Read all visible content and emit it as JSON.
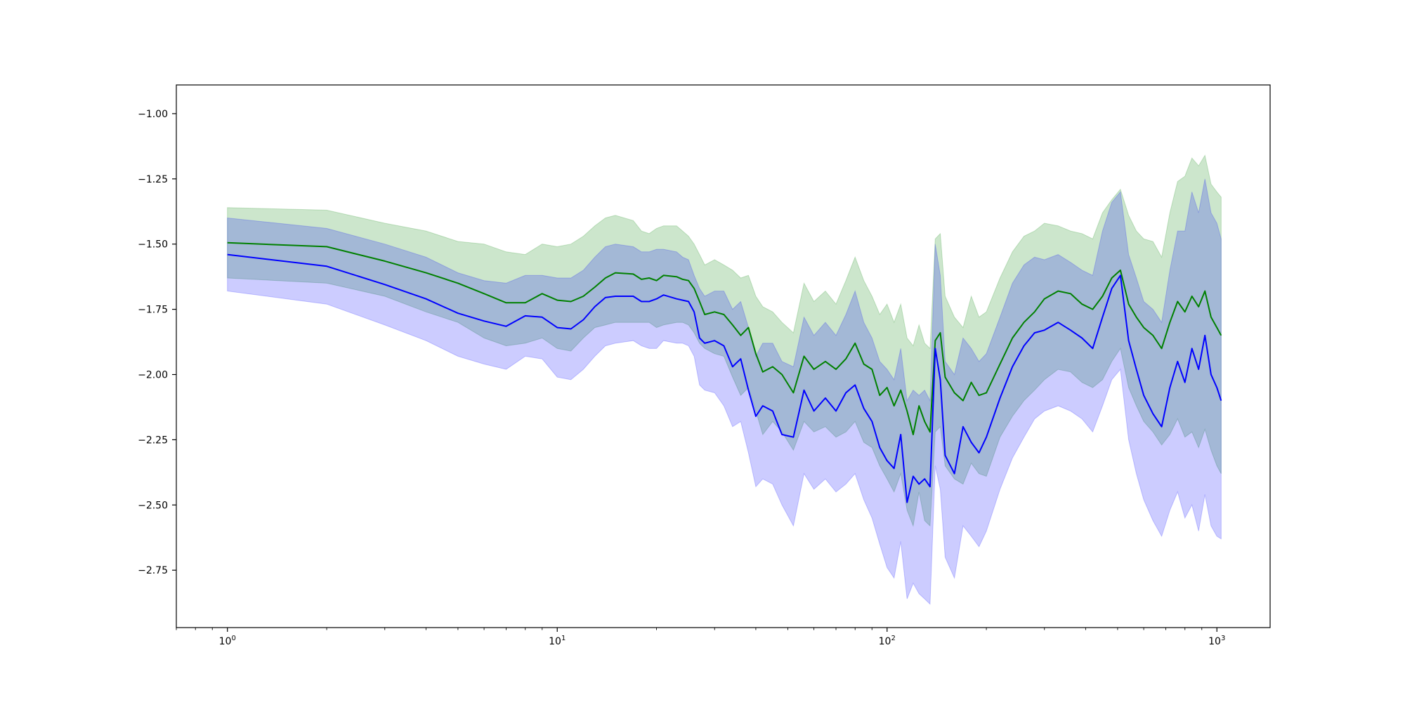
{
  "chart_data": {
    "type": "line",
    "title": "",
    "xlabel": "",
    "ylabel": "",
    "x_scale": "log",
    "xlim": [
      0.7,
      1450
    ],
    "ylim": [
      -2.97,
      -0.89
    ],
    "grid": false,
    "x_tick_labels": [
      {
        "value": 1,
        "base": "10",
        "exp": "0"
      },
      {
        "value": 10,
        "base": "10",
        "exp": "1"
      },
      {
        "value": 100,
        "base": "10",
        "exp": "2"
      },
      {
        "value": 1000,
        "base": "10",
        "exp": "3"
      }
    ],
    "y_ticks": [
      -1.0,
      -1.25,
      -1.5,
      -1.75,
      -2.0,
      -2.25,
      -2.5,
      -2.75
    ],
    "y_tick_labels": [
      "−1.00",
      "−1.25",
      "−1.50",
      "−1.75",
      "−2.00",
      "−2.25",
      "−2.50",
      "−2.75"
    ],
    "series": [
      {
        "color": "#008000",
        "band_color": "#008000",
        "band_opacity": 0.2,
        "points": [
          [
            1,
            -1.495,
            -1.36,
            -1.63
          ],
          [
            2,
            -1.51,
            -1.37,
            -1.65
          ],
          [
            3,
            -1.565,
            -1.42,
            -1.7
          ],
          [
            4,
            -1.61,
            -1.45,
            -1.76
          ],
          [
            5,
            -1.65,
            -1.49,
            -1.8
          ],
          [
            6,
            -1.69,
            -1.5,
            -1.86
          ],
          [
            7,
            -1.725,
            -1.53,
            -1.89
          ],
          [
            8,
            -1.725,
            -1.54,
            -1.88
          ],
          [
            9,
            -1.69,
            -1.5,
            -1.86
          ],
          [
            10,
            -1.715,
            -1.51,
            -1.9
          ],
          [
            11,
            -1.72,
            -1.5,
            -1.91
          ],
          [
            12,
            -1.7,
            -1.47,
            -1.86
          ],
          [
            13,
            -1.665,
            -1.43,
            -1.82
          ],
          [
            14,
            -1.63,
            -1.4,
            -1.81
          ],
          [
            15,
            -1.61,
            -1.39,
            -1.8
          ],
          [
            17,
            -1.615,
            -1.41,
            -1.8
          ],
          [
            18,
            -1.635,
            -1.45,
            -1.8
          ],
          [
            19,
            -1.63,
            -1.46,
            -1.8
          ],
          [
            20,
            -1.64,
            -1.44,
            -1.82
          ],
          [
            21,
            -1.62,
            -1.43,
            -1.81
          ],
          [
            23,
            -1.625,
            -1.43,
            -1.8
          ],
          [
            24,
            -1.635,
            -1.45,
            -1.8
          ],
          [
            25,
            -1.64,
            -1.47,
            -1.81
          ],
          [
            26,
            -1.67,
            -1.5,
            -1.84
          ],
          [
            27,
            -1.72,
            -1.54,
            -1.88
          ],
          [
            28,
            -1.77,
            -1.58,
            -1.9
          ],
          [
            30,
            -1.76,
            -1.56,
            -1.92
          ],
          [
            32,
            -1.77,
            -1.58,
            -1.93
          ],
          [
            34,
            -1.81,
            -1.6,
            -2.01
          ],
          [
            36,
            -1.85,
            -1.63,
            -2.08
          ],
          [
            38,
            -1.82,
            -1.62,
            -2.05
          ],
          [
            40,
            -1.92,
            -1.7,
            -2.14
          ],
          [
            42,
            -1.99,
            -1.74,
            -2.23
          ],
          [
            45,
            -1.97,
            -1.76,
            -2.18
          ],
          [
            48,
            -2.0,
            -1.8,
            -2.22
          ],
          [
            52,
            -2.07,
            -1.84,
            -2.29
          ],
          [
            56,
            -1.93,
            -1.65,
            -2.18
          ],
          [
            60,
            -1.98,
            -1.72,
            -2.22
          ],
          [
            65,
            -1.95,
            -1.68,
            -2.2
          ],
          [
            70,
            -1.98,
            -1.73,
            -2.24
          ],
          [
            75,
            -1.94,
            -1.64,
            -2.22
          ],
          [
            80,
            -1.88,
            -1.55,
            -2.18
          ],
          [
            85,
            -1.96,
            -1.64,
            -2.26
          ],
          [
            90,
            -1.98,
            -1.7,
            -2.28
          ],
          [
            95,
            -2.08,
            -1.77,
            -2.35
          ],
          [
            100,
            -2.05,
            -1.73,
            -2.4
          ],
          [
            105,
            -2.12,
            -1.8,
            -2.45
          ],
          [
            110,
            -2.06,
            -1.73,
            -2.38
          ],
          [
            115,
            -2.14,
            -1.86,
            -2.52
          ],
          [
            120,
            -2.23,
            -1.89,
            -2.58
          ],
          [
            125,
            -2.12,
            -1.81,
            -2.45
          ],
          [
            130,
            -2.18,
            -1.88,
            -2.56
          ],
          [
            135,
            -2.22,
            -1.9,
            -2.58
          ],
          [
            140,
            -1.87,
            -1.48,
            -2.22
          ],
          [
            145,
            -1.84,
            -1.46,
            -2.2
          ],
          [
            150,
            -2.01,
            -1.7,
            -2.35
          ],
          [
            160,
            -2.07,
            -1.78,
            -2.4
          ],
          [
            170,
            -2.1,
            -1.82,
            -2.42
          ],
          [
            180,
            -2.03,
            -1.7,
            -2.34
          ],
          [
            190,
            -2.08,
            -1.78,
            -2.38
          ],
          [
            200,
            -2.07,
            -1.76,
            -2.39
          ],
          [
            220,
            -1.96,
            -1.63,
            -2.24
          ],
          [
            240,
            -1.86,
            -1.53,
            -2.16
          ],
          [
            260,
            -1.8,
            -1.47,
            -2.1
          ],
          [
            280,
            -1.76,
            -1.45,
            -2.06
          ],
          [
            300,
            -1.71,
            -1.42,
            -2.02
          ],
          [
            330,
            -1.68,
            -1.43,
            -1.98
          ],
          [
            360,
            -1.69,
            -1.45,
            -1.99
          ],
          [
            390,
            -1.73,
            -1.46,
            -2.03
          ],
          [
            420,
            -1.75,
            -1.48,
            -2.05
          ],
          [
            450,
            -1.7,
            -1.38,
            -2.02
          ],
          [
            480,
            -1.63,
            -1.33,
            -1.95
          ],
          [
            510,
            -1.6,
            -1.29,
            -1.9
          ],
          [
            540,
            -1.73,
            -1.39,
            -2.05
          ],
          [
            570,
            -1.78,
            -1.45,
            -2.12
          ],
          [
            600,
            -1.82,
            -1.48,
            -2.18
          ],
          [
            640,
            -1.85,
            -1.49,
            -2.22
          ],
          [
            680,
            -1.9,
            -1.55,
            -2.27
          ],
          [
            720,
            -1.8,
            -1.38,
            -2.23
          ],
          [
            760,
            -1.72,
            -1.26,
            -2.17
          ],
          [
            800,
            -1.76,
            -1.24,
            -2.24
          ],
          [
            840,
            -1.7,
            -1.17,
            -2.22
          ],
          [
            880,
            -1.74,
            -1.2,
            -2.28
          ],
          [
            920,
            -1.68,
            -1.16,
            -2.21
          ],
          [
            960,
            -1.78,
            -1.27,
            -2.29
          ],
          [
            1000,
            -1.82,
            -1.3,
            -2.35
          ],
          [
            1030,
            -1.85,
            -1.32,
            -2.38
          ]
        ]
      },
      {
        "color": "#0000ff",
        "band_color": "#0000ff",
        "band_opacity": 0.2,
        "points": [
          [
            1,
            -1.54,
            -1.4,
            -1.68
          ],
          [
            2,
            -1.585,
            -1.44,
            -1.73
          ],
          [
            3,
            -1.655,
            -1.5,
            -1.81
          ],
          [
            4,
            -1.71,
            -1.55,
            -1.87
          ],
          [
            5,
            -1.765,
            -1.61,
            -1.93
          ],
          [
            6,
            -1.795,
            -1.64,
            -1.96
          ],
          [
            7,
            -1.815,
            -1.65,
            -1.98
          ],
          [
            8,
            -1.775,
            -1.62,
            -1.93
          ],
          [
            9,
            -1.78,
            -1.62,
            -1.94
          ],
          [
            10,
            -1.82,
            -1.63,
            -2.01
          ],
          [
            11,
            -1.825,
            -1.63,
            -2.02
          ],
          [
            12,
            -1.79,
            -1.6,
            -1.98
          ],
          [
            13,
            -1.74,
            -1.55,
            -1.93
          ],
          [
            14,
            -1.705,
            -1.51,
            -1.89
          ],
          [
            15,
            -1.7,
            -1.5,
            -1.88
          ],
          [
            17,
            -1.7,
            -1.51,
            -1.87
          ],
          [
            18,
            -1.72,
            -1.53,
            -1.89
          ],
          [
            19,
            -1.72,
            -1.53,
            -1.9
          ],
          [
            20,
            -1.71,
            -1.52,
            -1.9
          ],
          [
            21,
            -1.695,
            -1.52,
            -1.87
          ],
          [
            23,
            -1.71,
            -1.53,
            -1.88
          ],
          [
            24,
            -1.715,
            -1.55,
            -1.88
          ],
          [
            25,
            -1.72,
            -1.56,
            -1.89
          ],
          [
            26,
            -1.76,
            -1.62,
            -1.93
          ],
          [
            27,
            -1.86,
            -1.67,
            -2.04
          ],
          [
            28,
            -1.88,
            -1.7,
            -2.06
          ],
          [
            30,
            -1.87,
            -1.68,
            -2.07
          ],
          [
            32,
            -1.89,
            -1.68,
            -2.12
          ],
          [
            34,
            -1.97,
            -1.75,
            -2.2
          ],
          [
            36,
            -1.94,
            -1.72,
            -2.18
          ],
          [
            38,
            -2.06,
            -1.82,
            -2.3
          ],
          [
            40,
            -2.16,
            -1.93,
            -2.43
          ],
          [
            42,
            -2.12,
            -1.88,
            -2.4
          ],
          [
            45,
            -2.14,
            -1.88,
            -2.42
          ],
          [
            48,
            -2.23,
            -1.95,
            -2.5
          ],
          [
            52,
            -2.24,
            -1.97,
            -2.58
          ],
          [
            56,
            -2.06,
            -1.78,
            -2.38
          ],
          [
            60,
            -2.14,
            -1.85,
            -2.44
          ],
          [
            65,
            -2.09,
            -1.8,
            -2.4
          ],
          [
            70,
            -2.14,
            -1.85,
            -2.45
          ],
          [
            75,
            -2.07,
            -1.77,
            -2.42
          ],
          [
            80,
            -2.04,
            -1.68,
            -2.38
          ],
          [
            85,
            -2.13,
            -1.8,
            -2.48
          ],
          [
            90,
            -2.18,
            -1.86,
            -2.55
          ],
          [
            95,
            -2.28,
            -1.95,
            -2.65
          ],
          [
            100,
            -2.33,
            -1.98,
            -2.74
          ],
          [
            105,
            -2.36,
            -2.02,
            -2.78
          ],
          [
            110,
            -2.23,
            -1.9,
            -2.64
          ],
          [
            115,
            -2.49,
            -2.1,
            -2.86
          ],
          [
            120,
            -2.39,
            -2.06,
            -2.8
          ],
          [
            125,
            -2.42,
            -2.08,
            -2.84
          ],
          [
            130,
            -2.4,
            -2.06,
            -2.86
          ],
          [
            135,
            -2.43,
            -2.1,
            -2.88
          ],
          [
            140,
            -1.9,
            -1.5,
            -2.35
          ],
          [
            145,
            -2.02,
            -1.62,
            -2.44
          ],
          [
            150,
            -2.31,
            -1.95,
            -2.7
          ],
          [
            160,
            -2.38,
            -2.0,
            -2.78
          ],
          [
            170,
            -2.2,
            -1.86,
            -2.58
          ],
          [
            180,
            -2.26,
            -1.9,
            -2.62
          ],
          [
            190,
            -2.3,
            -1.95,
            -2.66
          ],
          [
            200,
            -2.24,
            -1.92,
            -2.6
          ],
          [
            220,
            -2.09,
            -1.78,
            -2.44
          ],
          [
            240,
            -1.97,
            -1.65,
            -2.32
          ],
          [
            260,
            -1.89,
            -1.58,
            -2.24
          ],
          [
            280,
            -1.84,
            -1.55,
            -2.17
          ],
          [
            300,
            -1.83,
            -1.56,
            -2.14
          ],
          [
            330,
            -1.8,
            -1.54,
            -2.12
          ],
          [
            360,
            -1.83,
            -1.57,
            -2.14
          ],
          [
            390,
            -1.86,
            -1.6,
            -2.17
          ],
          [
            420,
            -1.9,
            -1.62,
            -2.22
          ],
          [
            450,
            -1.78,
            -1.45,
            -2.12
          ],
          [
            480,
            -1.67,
            -1.34,
            -2.02
          ],
          [
            510,
            -1.62,
            -1.3,
            -1.98
          ],
          [
            540,
            -1.87,
            -1.54,
            -2.25
          ],
          [
            570,
            -1.98,
            -1.63,
            -2.38
          ],
          [
            600,
            -2.08,
            -1.72,
            -2.48
          ],
          [
            640,
            -2.15,
            -1.75,
            -2.56
          ],
          [
            680,
            -2.2,
            -1.8,
            -2.62
          ],
          [
            720,
            -2.05,
            -1.6,
            -2.52
          ],
          [
            760,
            -1.95,
            -1.45,
            -2.45
          ],
          [
            800,
            -2.03,
            -1.45,
            -2.55
          ],
          [
            840,
            -1.9,
            -1.3,
            -2.5
          ],
          [
            880,
            -1.98,
            -1.38,
            -2.6
          ],
          [
            920,
            -1.85,
            -1.25,
            -2.46
          ],
          [
            960,
            -2.0,
            -1.38,
            -2.58
          ],
          [
            1000,
            -2.05,
            -1.42,
            -2.62
          ],
          [
            1030,
            -2.1,
            -1.48,
            -2.63
          ]
        ]
      }
    ]
  }
}
